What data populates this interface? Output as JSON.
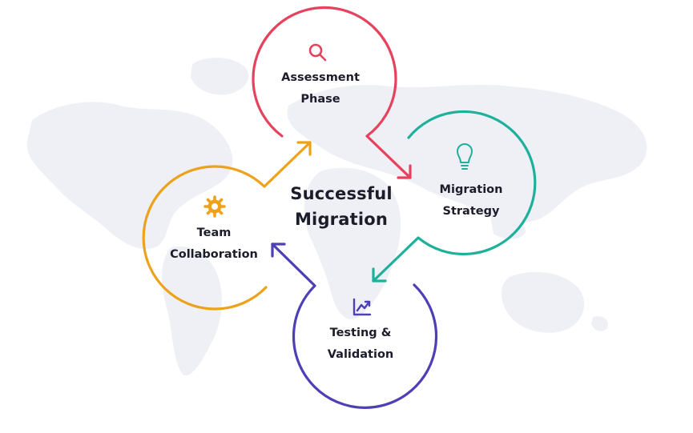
{
  "center": {
    "line1": "Successful",
    "line2": "Migration"
  },
  "stages": {
    "assessment": {
      "line1": "Assessment",
      "line2": "Phase",
      "color": "#e5435d",
      "icon": "magnifier-icon"
    },
    "strategy": {
      "line1": "Migration",
      "line2": "Strategy",
      "color": "#1fb09b",
      "icon": "lightbulb-icon"
    },
    "testing": {
      "line1": "Testing &",
      "line2": "Validation",
      "color": "#4d3fb6",
      "icon": "trend-chart-icon"
    },
    "team": {
      "line1": "Team",
      "line2": "Collaboration",
      "color": "#eea21c",
      "icon": "gear-icon"
    }
  }
}
